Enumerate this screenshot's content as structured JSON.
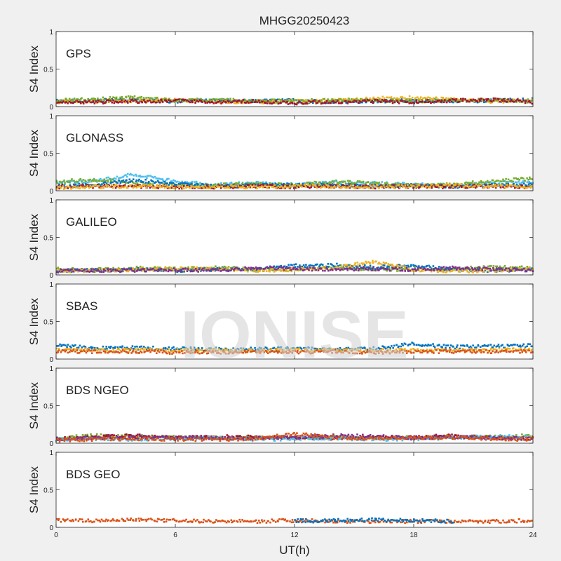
{
  "figure": {
    "title": "MHGG20250423",
    "xlabel": "UT(h)",
    "watermark": "IONISE",
    "background_color": "#f0f0f0",
    "axes_color": "#ffffff"
  },
  "chart_data": [
    {
      "type": "scatter",
      "label": "GPS",
      "ylabel": "S4 Index",
      "xlim": [
        0,
        24
      ],
      "ylim": [
        0,
        1
      ],
      "xticks": [
        0,
        6,
        12,
        18,
        24
      ],
      "yticks": [
        0,
        0.5,
        1
      ],
      "grid": false,
      "colors": [
        "#0072bd",
        "#d95319",
        "#edb120",
        "#7e2f8e",
        "#77ac30",
        "#4dbeee",
        "#a2142f"
      ],
      "series": [
        {
          "color": "#0072bd",
          "x": [
            0,
            2,
            4,
            6,
            8,
            10,
            12,
            14,
            16,
            18,
            20,
            22,
            24
          ],
          "y": [
            0.07,
            0.08,
            0.09,
            0.07,
            0.08,
            0.07,
            0.08,
            0.06,
            0.07,
            0.08,
            0.07,
            0.08,
            0.09
          ]
        },
        {
          "color": "#edb120",
          "x": [
            0,
            2,
            4,
            6,
            8,
            10,
            12,
            14,
            16,
            18,
            20,
            22,
            24
          ],
          "y": [
            0.06,
            0.07,
            0.08,
            0.09,
            0.07,
            0.06,
            0.07,
            0.08,
            0.11,
            0.12,
            0.09,
            0.07,
            0.08
          ]
        },
        {
          "color": "#77ac30",
          "x": [
            0,
            2,
            4,
            6,
            8,
            10,
            12,
            14,
            16,
            18,
            20,
            22,
            24
          ],
          "y": [
            0.08,
            0.1,
            0.12,
            0.08,
            0.09,
            0.08,
            0.07,
            0.09,
            0.08,
            0.07,
            0.09,
            0.08,
            0.07
          ]
        },
        {
          "color": "#a2142f",
          "x": [
            0,
            2,
            4,
            6,
            8,
            10,
            12,
            14,
            16,
            18,
            20,
            22,
            24
          ],
          "y": [
            0.05,
            0.06,
            0.07,
            0.08,
            0.06,
            0.07,
            0.05,
            0.06,
            0.07,
            0.06,
            0.08,
            0.09,
            0.06
          ]
        }
      ]
    },
    {
      "type": "scatter",
      "label": "GLONASS",
      "ylabel": "S4 Index",
      "xlim": [
        0,
        24
      ],
      "ylim": [
        0,
        1
      ],
      "xticks": [
        0,
        6,
        12,
        18,
        24
      ],
      "yticks": [
        0,
        0.5,
        1
      ],
      "grid": false,
      "colors": [
        "#0072bd",
        "#d95319",
        "#edb120",
        "#7e2f8e",
        "#77ac30",
        "#4dbeee",
        "#a2142f"
      ],
      "series": [
        {
          "color": "#4dbeee",
          "x": [
            0,
            2,
            4,
            6,
            8,
            10,
            12,
            14,
            16,
            18,
            20,
            22,
            24
          ],
          "y": [
            0.1,
            0.13,
            0.22,
            0.12,
            0.08,
            0.1,
            0.07,
            0.11,
            0.1,
            0.08,
            0.07,
            0.1,
            0.12
          ]
        },
        {
          "color": "#77ac30",
          "x": [
            0,
            2,
            4,
            6,
            8,
            10,
            12,
            14,
            16,
            18,
            20,
            22,
            24
          ],
          "y": [
            0.12,
            0.15,
            0.1,
            0.08,
            0.07,
            0.09,
            0.08,
            0.12,
            0.1,
            0.07,
            0.08,
            0.13,
            0.16
          ]
        },
        {
          "color": "#0072bd",
          "x": [
            0,
            2,
            4,
            6,
            8,
            10,
            12,
            14,
            16,
            18,
            20,
            22,
            24
          ],
          "y": [
            0.06,
            0.08,
            0.14,
            0.09,
            0.06,
            0.07,
            0.08,
            0.07,
            0.06,
            0.07,
            0.06,
            0.07,
            0.08
          ]
        },
        {
          "color": "#a2142f",
          "x": [
            0,
            2,
            4,
            6,
            8,
            10,
            12,
            14,
            16,
            18,
            20,
            22,
            24
          ],
          "y": [
            0.05,
            0.06,
            0.06,
            0.05,
            0.05,
            0.06,
            0.05,
            0.06,
            0.05,
            0.06,
            0.05,
            0.06,
            0.05
          ]
        },
        {
          "color": "#edb120",
          "x": [
            0,
            2,
            4,
            6,
            8,
            10,
            12,
            14,
            16,
            18,
            20,
            22,
            24
          ],
          "y": [
            0.04,
            0.05,
            0.06,
            0.05,
            0.05,
            0.05,
            0.06,
            0.06,
            0.05,
            0.06,
            0.07,
            0.06,
            0.05
          ]
        }
      ]
    },
    {
      "type": "scatter",
      "label": "GALILEO",
      "ylabel": "S4 Index",
      "xlim": [
        0,
        24
      ],
      "ylim": [
        0,
        1
      ],
      "xticks": [
        0,
        6,
        12,
        18,
        24
      ],
      "yticks": [
        0,
        0.5,
        1
      ],
      "grid": false,
      "colors": [
        "#0072bd",
        "#d95319",
        "#edb120",
        "#7e2f8e",
        "#77ac30",
        "#4dbeee",
        "#a2142f"
      ],
      "series": [
        {
          "color": "#77ac30",
          "x": [
            0,
            2,
            4,
            6,
            8,
            10,
            12,
            14,
            16,
            18,
            20,
            22,
            24
          ],
          "y": [
            0.08,
            0.07,
            0.09,
            0.08,
            0.1,
            0.07,
            0.08,
            0.09,
            0.08,
            0.07,
            0.08,
            0.1,
            0.09
          ]
        },
        {
          "color": "#0072bd",
          "x": [
            0,
            2,
            4,
            6,
            8,
            10,
            12,
            14,
            16,
            18,
            20,
            22,
            24
          ],
          "y": [
            0.06,
            0.06,
            0.07,
            0.06,
            0.07,
            0.08,
            0.12,
            0.13,
            0.1,
            0.12,
            0.07,
            0.06,
            0.07
          ]
        },
        {
          "color": "#edb120",
          "x": [
            0,
            2,
            4,
            6,
            8,
            10,
            12,
            14,
            16,
            18,
            20,
            22,
            24
          ],
          "y": [
            0.05,
            0.06,
            0.07,
            0.08,
            0.08,
            0.06,
            0.07,
            0.09,
            0.18,
            0.07,
            0.05,
            0.06,
            0.08
          ]
        },
        {
          "color": "#7e2f8e",
          "x": [
            0,
            2,
            4,
            6,
            8,
            10,
            12,
            14,
            16,
            18,
            20,
            22,
            24
          ],
          "y": [
            0.05,
            0.06,
            0.06,
            0.07,
            0.06,
            0.09,
            0.08,
            0.07,
            0.08,
            0.07,
            0.09,
            0.08,
            0.06
          ]
        }
      ]
    },
    {
      "type": "scatter",
      "label": "SBAS",
      "ylabel": "S4 Index",
      "xlim": [
        0,
        24
      ],
      "ylim": [
        0,
        1
      ],
      "xticks": [
        0,
        6,
        12,
        18,
        24
      ],
      "yticks": [
        0,
        0.5,
        1
      ],
      "grid": false,
      "colors": [
        "#0072bd",
        "#edb120",
        "#d95319"
      ],
      "series": [
        {
          "color": "#0072bd",
          "x": [
            0,
            2,
            4,
            6,
            8,
            10,
            12,
            14,
            16,
            18,
            20,
            22,
            24
          ],
          "y": [
            0.18,
            0.15,
            0.15,
            0.14,
            0.13,
            0.13,
            0.14,
            0.13,
            0.14,
            0.2,
            0.16,
            0.17,
            0.18
          ]
        },
        {
          "color": "#edb120",
          "x": [
            0,
            2,
            4,
            6,
            8,
            10,
            12,
            14,
            16,
            18,
            20,
            22,
            24
          ],
          "y": [
            0.13,
            0.12,
            0.12,
            0.12,
            0.11,
            0.11,
            0.12,
            0.11,
            0.11,
            0.12,
            0.12,
            0.12,
            0.13
          ]
        },
        {
          "color": "#d95319",
          "x": [
            0,
            2,
            4,
            6,
            8,
            10,
            12,
            14,
            16,
            18,
            20,
            22,
            24
          ],
          "y": [
            0.1,
            0.1,
            0.1,
            0.09,
            0.09,
            0.1,
            0.09,
            0.1,
            0.09,
            0.1,
            0.1,
            0.1,
            0.1
          ]
        }
      ]
    },
    {
      "type": "scatter",
      "label": "BDS NGEO",
      "ylabel": "S4 Index",
      "xlim": [
        0,
        24
      ],
      "ylim": [
        0,
        1
      ],
      "xticks": [
        0,
        6,
        12,
        18,
        24
      ],
      "yticks": [
        0,
        0.5,
        1
      ],
      "grid": false,
      "colors": [
        "#0072bd",
        "#d95319",
        "#edb120",
        "#7e2f8e",
        "#77ac30",
        "#4dbeee",
        "#a2142f"
      ],
      "series": [
        {
          "color": "#77ac30",
          "x": [
            0,
            2,
            4,
            6,
            8,
            10,
            12,
            14,
            16,
            18,
            20,
            22,
            24
          ],
          "y": [
            0.07,
            0.1,
            0.09,
            0.08,
            0.07,
            0.08,
            0.07,
            0.08,
            0.07,
            0.08,
            0.09,
            0.08,
            0.1
          ]
        },
        {
          "color": "#a2142f",
          "x": [
            0,
            2,
            4,
            6,
            8,
            10,
            12,
            14,
            16,
            18,
            20,
            22,
            24
          ],
          "y": [
            0.06,
            0.08,
            0.1,
            0.07,
            0.09,
            0.08,
            0.07,
            0.06,
            0.07,
            0.08,
            0.1,
            0.07,
            0.06
          ]
        },
        {
          "color": "#4dbeee",
          "x": [
            0,
            2,
            4,
            6,
            8,
            10,
            12,
            14,
            16,
            18,
            20,
            22,
            24
          ],
          "y": [
            0.05,
            0.06,
            0.05,
            0.06,
            0.07,
            0.05,
            0.06,
            0.07,
            0.05,
            0.06,
            0.07,
            0.09,
            0.08
          ]
        },
        {
          "color": "#7e2f8e",
          "x": [
            0,
            2,
            4,
            6,
            8,
            10,
            12,
            14,
            16,
            18,
            20,
            22,
            24
          ],
          "y": [
            0.06,
            0.07,
            0.08,
            0.07,
            0.06,
            0.07,
            0.08,
            0.1,
            0.09,
            0.07,
            0.08,
            0.07,
            0.06
          ]
        },
        {
          "color": "#d95319",
          "x": [
            0,
            2,
            4,
            6,
            8,
            10,
            12,
            14,
            16,
            18,
            20,
            22,
            24
          ],
          "y": [
            0.04,
            0.05,
            0.06,
            0.05,
            0.05,
            0.06,
            0.12,
            0.08,
            0.06,
            0.07,
            0.08,
            0.06,
            0.05
          ]
        }
      ]
    },
    {
      "type": "scatter",
      "label": "BDS GEO",
      "ylabel": "S4 Index",
      "xlim": [
        0,
        24
      ],
      "ylim": [
        0,
        1
      ],
      "xticks": [
        0,
        6,
        12,
        18,
        24
      ],
      "yticks": [
        0,
        0.5,
        1
      ],
      "grid": false,
      "colors": [
        "#d95319",
        "#0072bd"
      ],
      "series": [
        {
          "color": "#d95319",
          "x": [
            0,
            2,
            4,
            6,
            8,
            10,
            12,
            14,
            16,
            18,
            20,
            22,
            24
          ],
          "y": [
            0.09,
            0.09,
            0.1,
            0.09,
            0.08,
            0.08,
            0.09,
            0.08,
            0.08,
            0.08,
            0.08,
            0.08,
            0.09
          ]
        },
        {
          "color": "#0072bd",
          "x": [
            12,
            14,
            16,
            18,
            20
          ],
          "y": [
            0.09,
            0.09,
            0.1,
            0.09,
            0.08
          ]
        }
      ]
    }
  ]
}
